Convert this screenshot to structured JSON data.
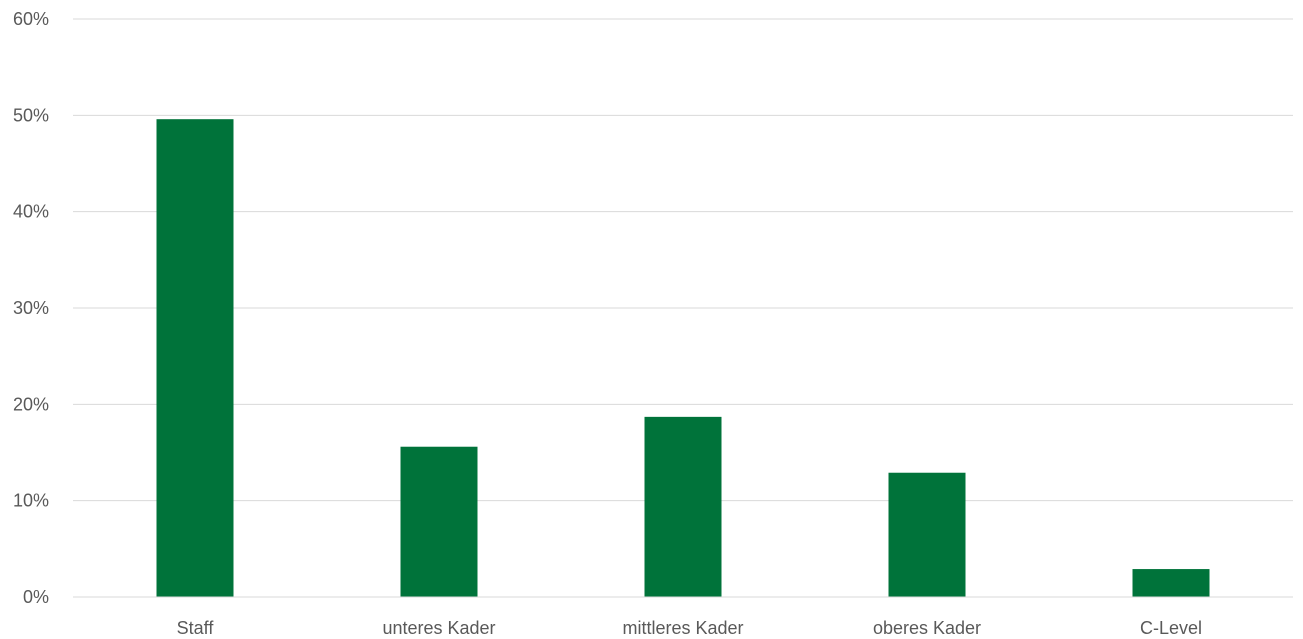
{
  "chart_data": {
    "type": "bar",
    "categories": [
      "Staff",
      "unteres Kader",
      "mittleres Kader",
      "oberes Kader",
      "C-Level"
    ],
    "values": [
      49.6,
      15.6,
      18.7,
      12.9,
      2.9
    ],
    "value_unit": "%",
    "ylim": [
      0,
      60
    ],
    "y_ticks": [
      0,
      10,
      20,
      30,
      40,
      50,
      60
    ],
    "y_tick_labels": [
      "0%",
      "10%",
      "20%",
      "30%",
      "40%",
      "50%",
      "60%"
    ],
    "grid": true,
    "legend": "none",
    "bar_color": "#00733A",
    "title": "",
    "xlabel": "",
    "ylabel": ""
  }
}
